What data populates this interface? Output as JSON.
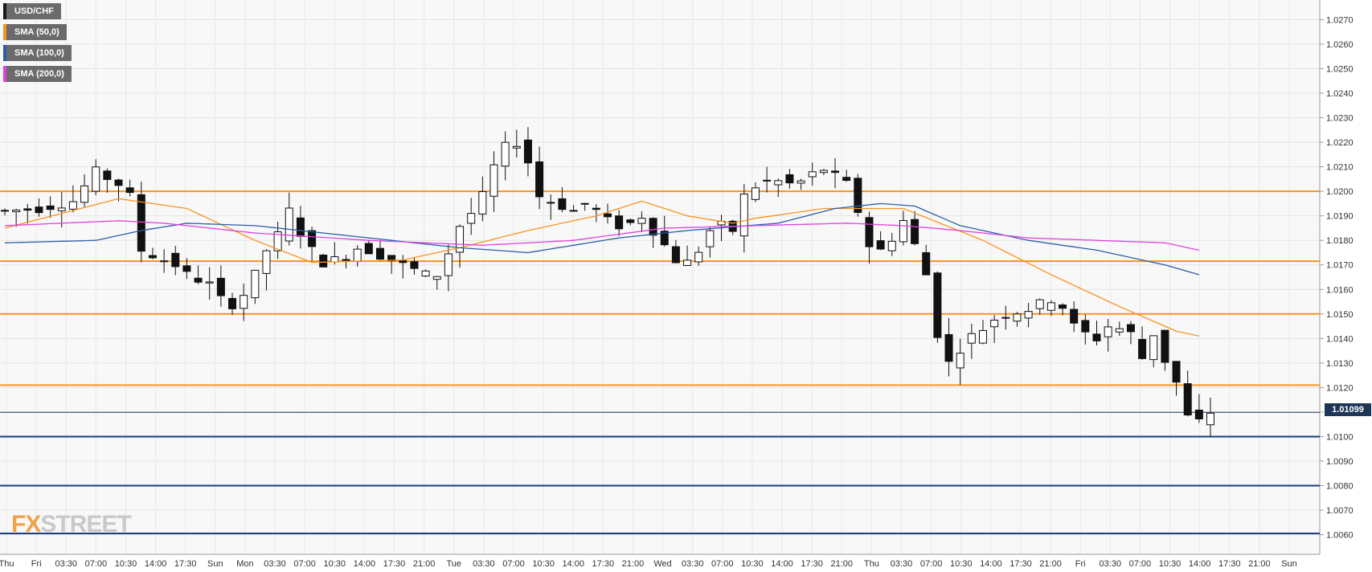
{
  "chart_data": {
    "type": "candlestick",
    "title": "",
    "symbol": "USD/CHF",
    "indicators": [
      {
        "name": "SMA (50,0)",
        "color": "#f7931e"
      },
      {
        "name": "SMA (100,0)",
        "color": "#2b5ea8"
      },
      {
        "name": "SMA (200,0)",
        "color": "#e040e0"
      }
    ],
    "ylim": [
      1.0052,
      1.0278
    ],
    "yticks": [
      "1.0060",
      "1.0070",
      "1.0080",
      "1.0090",
      "1.0100",
      "1.0110",
      "1.0120",
      "1.0130",
      "1.0140",
      "1.0150",
      "1.0160",
      "1.0170",
      "1.0180",
      "1.0190",
      "1.0200",
      "1.0210",
      "1.0220",
      "1.0230",
      "1.0240",
      "1.0250",
      "1.0260",
      "1.0270"
    ],
    "xticks": [
      "Thu",
      "Fri",
      "03:30",
      "07:00",
      "10:30",
      "14:00",
      "17:30",
      "Sun",
      "Mon",
      "03:30",
      "07:00",
      "10:30",
      "14:00",
      "17:30",
      "21:00",
      "Tue",
      "03:30",
      "07:00",
      "10:30",
      "14:00",
      "17:30",
      "21:00",
      "Wed",
      "03:30",
      "07:00",
      "10:30",
      "14:00",
      "17:30",
      "21:00",
      "Thu",
      "03:30",
      "07:00",
      "10:30",
      "14:00",
      "17:30",
      "21:00",
      "Fri",
      "03:30",
      "07:00",
      "10:30",
      "14:00",
      "17:30",
      "21:00",
      "Sun"
    ],
    "current_price": "1.01099",
    "resistance_levels": [
      1.02,
      1.01715,
      1.015,
      1.0121
    ],
    "support_levels": [
      1.01,
      1.008,
      1.00605
    ],
    "price_path": [
      [
        0,
        1.0192
      ],
      [
        3,
        1.0193
      ],
      [
        6,
        1.0196
      ],
      [
        8,
        1.0208
      ],
      [
        10,
        1.0203
      ],
      [
        11,
        1.0198
      ],
      [
        12,
        1.0176
      ],
      [
        13,
        1.0174
      ],
      [
        15,
        1.017
      ],
      [
        16,
        1.0166
      ],
      [
        17,
        1.0164
      ],
      [
        18,
        1.0162
      ],
      [
        19,
        1.0156
      ],
      [
        20,
        1.0154
      ],
      [
        21,
        1.0158
      ],
      [
        22,
        1.0166
      ],
      [
        23,
        1.0176
      ],
      [
        24,
        1.0182
      ],
      [
        25,
        1.0192
      ],
      [
        26,
        1.0183
      ],
      [
        27,
        1.0176
      ],
      [
        28,
        1.0171
      ],
      [
        29,
        1.0172
      ],
      [
        30,
        1.0174
      ],
      [
        31,
        1.0177
      ],
      [
        32,
        1.0176
      ],
      [
        34,
        1.0172
      ],
      [
        36,
        1.0168
      ],
      [
        37,
        1.0166
      ],
      [
        38,
        1.0166
      ],
      [
        39,
        1.0175
      ],
      [
        40,
        1.0186
      ],
      [
        41,
        1.0191
      ],
      [
        42,
        1.0198
      ],
      [
        43,
        1.021
      ],
      [
        44,
        1.0218
      ],
      [
        45,
        1.022
      ],
      [
        46,
        1.0212
      ],
      [
        47,
        1.0198
      ],
      [
        48,
        1.0196
      ],
      [
        50,
        1.0192
      ],
      [
        51,
        1.0195
      ],
      [
        52,
        1.0192
      ],
      [
        53,
        1.0188
      ],
      [
        54,
        1.0186
      ],
      [
        55,
        1.0187
      ],
      [
        56,
        1.019
      ],
      [
        57,
        1.0184
      ],
      [
        58,
        1.0178
      ],
      [
        59,
        1.0172
      ],
      [
        60,
        1.0171
      ],
      [
        61,
        1.0176
      ],
      [
        62,
        1.0184
      ],
      [
        63,
        1.0186
      ],
      [
        64,
        1.0184
      ],
      [
        65,
        1.0198
      ],
      [
        66,
        1.0202
      ],
      [
        67,
        1.0204
      ],
      [
        68,
        1.0204
      ],
      [
        69,
        1.0203
      ],
      [
        70,
        1.0204
      ],
      [
        71,
        1.0207
      ],
      [
        72,
        1.0209
      ],
      [
        73,
        1.0206
      ],
      [
        74,
        1.0203
      ],
      [
        75,
        1.0192
      ],
      [
        76,
        1.0178
      ],
      [
        77,
        1.0176
      ],
      [
        78,
        1.0181
      ],
      [
        79,
        1.0188
      ],
      [
        80,
        1.0178
      ],
      [
        81,
        1.0166
      ],
      [
        82,
        1.0142
      ],
      [
        83,
        1.013
      ],
      [
        84,
        1.0136
      ],
      [
        85,
        1.0141
      ],
      [
        86,
        1.0144
      ],
      [
        87,
        1.0148
      ],
      [
        88,
        1.015
      ],
      [
        89,
        1.0151
      ],
      [
        90,
        1.0152
      ],
      [
        91,
        1.0154
      ],
      [
        92,
        1.0156
      ],
      [
        93,
        1.0153
      ],
      [
        94,
        1.0145
      ],
      [
        95,
        1.0142
      ],
      [
        96,
        1.014
      ],
      [
        97,
        1.0145
      ],
      [
        98,
        1.0144
      ],
      [
        99,
        1.0142
      ],
      [
        100,
        1.0132
      ],
      [
        101,
        1.0142
      ],
      [
        102,
        1.0131
      ],
      [
        103,
        1.0122
      ],
      [
        104,
        1.0108
      ],
      [
        105,
        1.0106
      ],
      [
        106,
        1.011
      ]
    ],
    "sma50": [
      [
        0,
        1.0185
      ],
      [
        10,
        1.0197
      ],
      [
        16,
        1.0193
      ],
      [
        22,
        1.018
      ],
      [
        27,
        1.0171
      ],
      [
        35,
        1.0172
      ],
      [
        40,
        1.0177
      ],
      [
        46,
        1.0184
      ],
      [
        52,
        1.019
      ],
      [
        56,
        1.0196
      ],
      [
        60,
        1.019
      ],
      [
        64,
        1.0187
      ],
      [
        66,
        1.0189
      ],
      [
        72,
        1.0193
      ],
      [
        76,
        1.0193
      ],
      [
        79,
        1.0193
      ],
      [
        86,
        1.018
      ],
      [
        92,
        1.0166
      ],
      [
        98,
        1.0153
      ],
      [
        103,
        1.0143
      ],
      [
        105,
        1.0141
      ]
    ],
    "sma100": [
      [
        0,
        1.0179
      ],
      [
        8,
        1.018
      ],
      [
        12,
        1.0184
      ],
      [
        16,
        1.0187
      ],
      [
        22,
        1.0186
      ],
      [
        30,
        1.0182
      ],
      [
        40,
        1.0177
      ],
      [
        46,
        1.0175
      ],
      [
        54,
        1.0181
      ],
      [
        60,
        1.0184
      ],
      [
        68,
        1.0187
      ],
      [
        73,
        1.0193
      ],
      [
        77,
        1.0195
      ],
      [
        80,
        1.0194
      ],
      [
        84,
        1.0186
      ],
      [
        90,
        1.018
      ],
      [
        96,
        1.0176
      ],
      [
        102,
        1.017
      ],
      [
        105,
        1.0166
      ]
    ],
    "sma200": [
      [
        0,
        1.0186
      ],
      [
        10,
        1.0188
      ],
      [
        14,
        1.0187
      ],
      [
        22,
        1.0183
      ],
      [
        32,
        1.018
      ],
      [
        42,
        1.0178
      ],
      [
        50,
        1.018
      ],
      [
        58,
        1.0185
      ],
      [
        66,
        1.0186
      ],
      [
        74,
        1.0187
      ],
      [
        79,
        1.0186
      ],
      [
        84,
        1.0184
      ],
      [
        90,
        1.0181
      ],
      [
        96,
        1.018
      ],
      [
        102,
        1.0179
      ],
      [
        105,
        1.0176
      ]
    ]
  }
}
